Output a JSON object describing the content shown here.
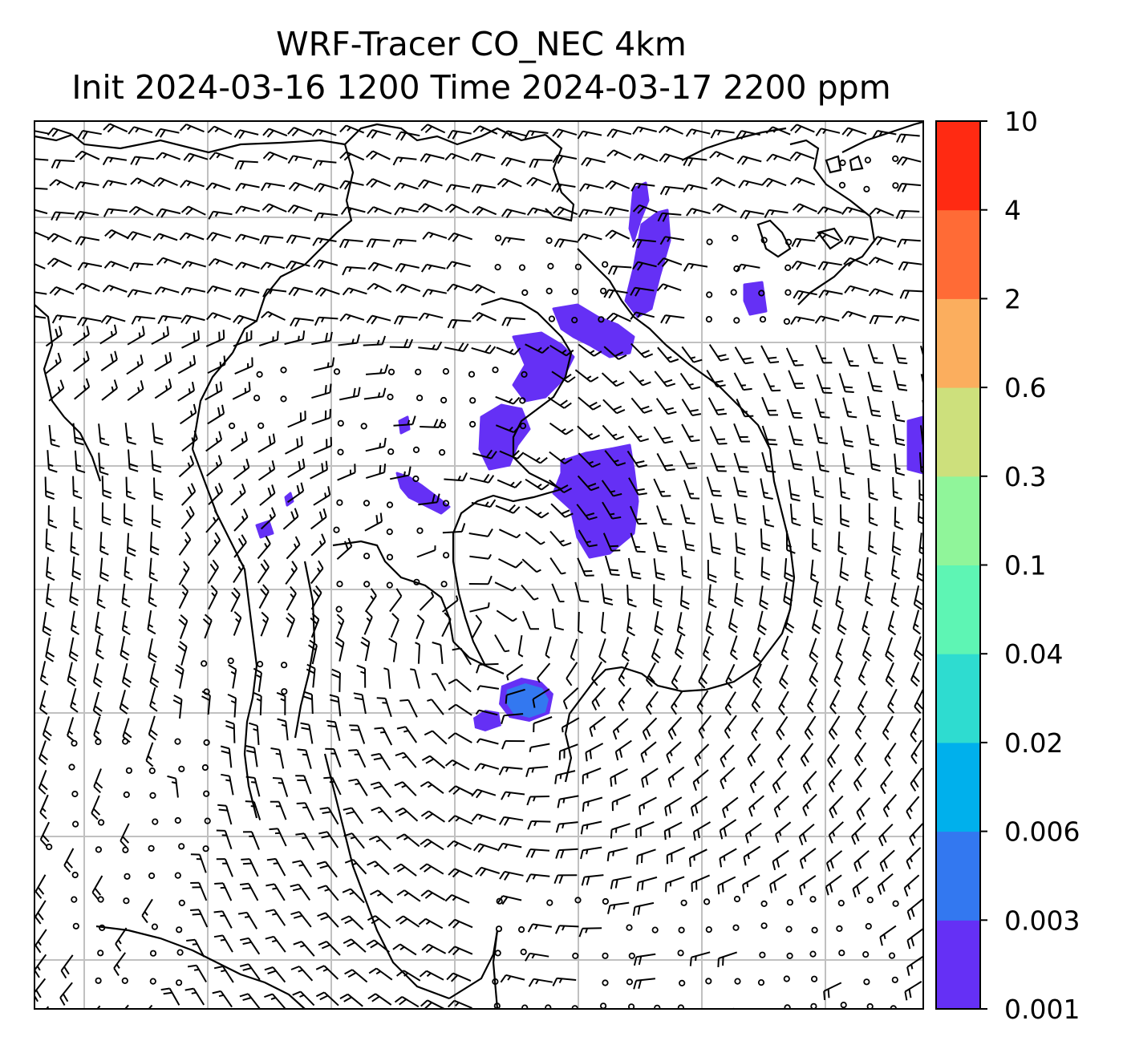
{
  "title": {
    "line1": "WRF-Tracer CO_NEC 4km",
    "line2": "Init 2024-03-16 1200 Time 2024-03-17 2200 ppm"
  },
  "map_data": {
    "type": "contourf_with_wind_barbs",
    "grid": true,
    "colorbar": {
      "levels": [
        "0.001",
        "0.003",
        "0.006",
        "0.02",
        "0.04",
        "0.1",
        "0.3",
        "0.6",
        "2",
        "4",
        "10"
      ],
      "colors": [
        "#6530f5",
        "#3378f0",
        "#00b0ec",
        "#2edcd0",
        "#5ef5b4",
        "#90f59a",
        "#cde07c",
        "#fbae5e",
        "#ff6b36",
        "#ff2a12"
      ]
    },
    "tracer_color": "#6530f5",
    "tracer_color_secondary": "#3378f0",
    "barb_color": "#000000",
    "coastline_color": "#000000",
    "gridline_color": "#c0c0c0"
  }
}
